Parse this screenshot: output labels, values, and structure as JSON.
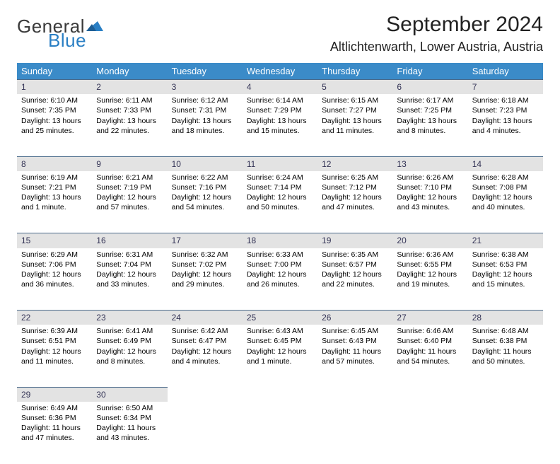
{
  "logo": {
    "text1": "General",
    "text2": "Blue",
    "tri_color": "#2a7fc4"
  },
  "title": "September 2024",
  "location": "Altlichtenwarth, Lower Austria, Austria",
  "header_bg": "#3b8bc8",
  "daynum_bg": "#e3e3e3",
  "daynum_border": "#4a6a8a",
  "weekdays": [
    "Sunday",
    "Monday",
    "Tuesday",
    "Wednesday",
    "Thursday",
    "Friday",
    "Saturday"
  ],
  "weeks": [
    [
      {
        "n": "1",
        "sr": "Sunrise: 6:10 AM",
        "ss": "Sunset: 7:35 PM",
        "dl": "Daylight: 13 hours and 25 minutes."
      },
      {
        "n": "2",
        "sr": "Sunrise: 6:11 AM",
        "ss": "Sunset: 7:33 PM",
        "dl": "Daylight: 13 hours and 22 minutes."
      },
      {
        "n": "3",
        "sr": "Sunrise: 6:12 AM",
        "ss": "Sunset: 7:31 PM",
        "dl": "Daylight: 13 hours and 18 minutes."
      },
      {
        "n": "4",
        "sr": "Sunrise: 6:14 AM",
        "ss": "Sunset: 7:29 PM",
        "dl": "Daylight: 13 hours and 15 minutes."
      },
      {
        "n": "5",
        "sr": "Sunrise: 6:15 AM",
        "ss": "Sunset: 7:27 PM",
        "dl": "Daylight: 13 hours and 11 minutes."
      },
      {
        "n": "6",
        "sr": "Sunrise: 6:17 AM",
        "ss": "Sunset: 7:25 PM",
        "dl": "Daylight: 13 hours and 8 minutes."
      },
      {
        "n": "7",
        "sr": "Sunrise: 6:18 AM",
        "ss": "Sunset: 7:23 PM",
        "dl": "Daylight: 13 hours and 4 minutes."
      }
    ],
    [
      {
        "n": "8",
        "sr": "Sunrise: 6:19 AM",
        "ss": "Sunset: 7:21 PM",
        "dl": "Daylight: 13 hours and 1 minute."
      },
      {
        "n": "9",
        "sr": "Sunrise: 6:21 AM",
        "ss": "Sunset: 7:19 PM",
        "dl": "Daylight: 12 hours and 57 minutes."
      },
      {
        "n": "10",
        "sr": "Sunrise: 6:22 AM",
        "ss": "Sunset: 7:16 PM",
        "dl": "Daylight: 12 hours and 54 minutes."
      },
      {
        "n": "11",
        "sr": "Sunrise: 6:24 AM",
        "ss": "Sunset: 7:14 PM",
        "dl": "Daylight: 12 hours and 50 minutes."
      },
      {
        "n": "12",
        "sr": "Sunrise: 6:25 AM",
        "ss": "Sunset: 7:12 PM",
        "dl": "Daylight: 12 hours and 47 minutes."
      },
      {
        "n": "13",
        "sr": "Sunrise: 6:26 AM",
        "ss": "Sunset: 7:10 PM",
        "dl": "Daylight: 12 hours and 43 minutes."
      },
      {
        "n": "14",
        "sr": "Sunrise: 6:28 AM",
        "ss": "Sunset: 7:08 PM",
        "dl": "Daylight: 12 hours and 40 minutes."
      }
    ],
    [
      {
        "n": "15",
        "sr": "Sunrise: 6:29 AM",
        "ss": "Sunset: 7:06 PM",
        "dl": "Daylight: 12 hours and 36 minutes."
      },
      {
        "n": "16",
        "sr": "Sunrise: 6:31 AM",
        "ss": "Sunset: 7:04 PM",
        "dl": "Daylight: 12 hours and 33 minutes."
      },
      {
        "n": "17",
        "sr": "Sunrise: 6:32 AM",
        "ss": "Sunset: 7:02 PM",
        "dl": "Daylight: 12 hours and 29 minutes."
      },
      {
        "n": "18",
        "sr": "Sunrise: 6:33 AM",
        "ss": "Sunset: 7:00 PM",
        "dl": "Daylight: 12 hours and 26 minutes."
      },
      {
        "n": "19",
        "sr": "Sunrise: 6:35 AM",
        "ss": "Sunset: 6:57 PM",
        "dl": "Daylight: 12 hours and 22 minutes."
      },
      {
        "n": "20",
        "sr": "Sunrise: 6:36 AM",
        "ss": "Sunset: 6:55 PM",
        "dl": "Daylight: 12 hours and 19 minutes."
      },
      {
        "n": "21",
        "sr": "Sunrise: 6:38 AM",
        "ss": "Sunset: 6:53 PM",
        "dl": "Daylight: 12 hours and 15 minutes."
      }
    ],
    [
      {
        "n": "22",
        "sr": "Sunrise: 6:39 AM",
        "ss": "Sunset: 6:51 PM",
        "dl": "Daylight: 12 hours and 11 minutes."
      },
      {
        "n": "23",
        "sr": "Sunrise: 6:41 AM",
        "ss": "Sunset: 6:49 PM",
        "dl": "Daylight: 12 hours and 8 minutes."
      },
      {
        "n": "24",
        "sr": "Sunrise: 6:42 AM",
        "ss": "Sunset: 6:47 PM",
        "dl": "Daylight: 12 hours and 4 minutes."
      },
      {
        "n": "25",
        "sr": "Sunrise: 6:43 AM",
        "ss": "Sunset: 6:45 PM",
        "dl": "Daylight: 12 hours and 1 minute."
      },
      {
        "n": "26",
        "sr": "Sunrise: 6:45 AM",
        "ss": "Sunset: 6:43 PM",
        "dl": "Daylight: 11 hours and 57 minutes."
      },
      {
        "n": "27",
        "sr": "Sunrise: 6:46 AM",
        "ss": "Sunset: 6:40 PM",
        "dl": "Daylight: 11 hours and 54 minutes."
      },
      {
        "n": "28",
        "sr": "Sunrise: 6:48 AM",
        "ss": "Sunset: 6:38 PM",
        "dl": "Daylight: 11 hours and 50 minutes."
      }
    ],
    [
      {
        "n": "29",
        "sr": "Sunrise: 6:49 AM",
        "ss": "Sunset: 6:36 PM",
        "dl": "Daylight: 11 hours and 47 minutes."
      },
      {
        "n": "30",
        "sr": "Sunrise: 6:50 AM",
        "ss": "Sunset: 6:34 PM",
        "dl": "Daylight: 11 hours and 43 minutes."
      },
      null,
      null,
      null,
      null,
      null
    ]
  ]
}
